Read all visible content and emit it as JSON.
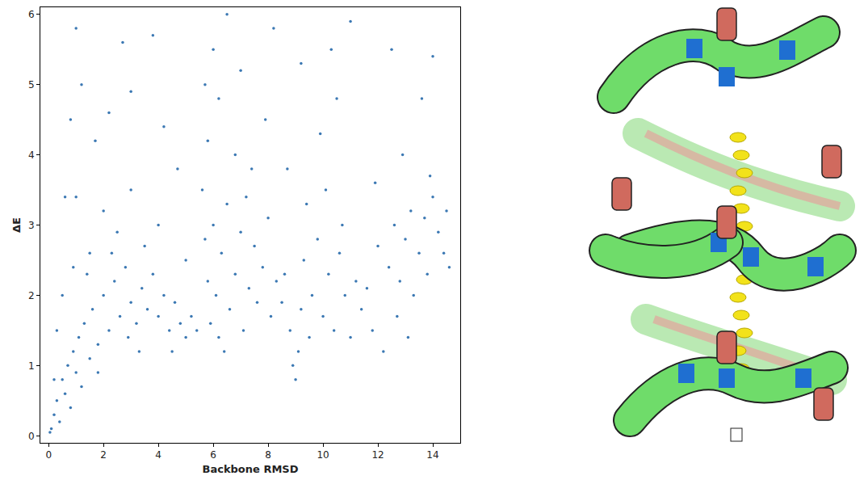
{
  "chart_data": {
    "type": "scatter",
    "x_label": "Backbone RMSD",
    "y_label": "ΔE",
    "color": "#3b78b3",
    "marker": "circle",
    "grid": false,
    "xlim": [
      -0.3,
      15.0
    ],
    "xticks": [
      0,
      2,
      4,
      6,
      8,
      10,
      12,
      14
    ],
    "ylim": [
      -0.1,
      6.1
    ],
    "yticks": [
      0,
      1,
      2,
      3,
      4,
      5,
      6
    ],
    "x": [
      0.05,
      0.1,
      0.2,
      0.3,
      0.4,
      0.5,
      0.6,
      0.7,
      0.8,
      0.9,
      1.0,
      1.1,
      1.2,
      1.3,
      1.5,
      1.6,
      1.8,
      2.0,
      2.2,
      2.4,
      2.6,
      2.8,
      3.0,
      3.2,
      3.4,
      3.6,
      3.8,
      4.0,
      4.2,
      4.4,
      4.6,
      4.8,
      5.0,
      5.2,
      5.4,
      1.5,
      2.5,
      3.5,
      2.0,
      3.0,
      4.0,
      1.0,
      0.6,
      0.8,
      1.2,
      1.0,
      2.2,
      3.0,
      4.2,
      2.7,
      3.8,
      1.7,
      4.7,
      5.0,
      0.3,
      0.5,
      0.2,
      1.4,
      2.3,
      3.3,
      4.5,
      0.9,
      1.8,
      2.9,
      5.6,
      5.7,
      5.8,
      5.9,
      6.0,
      6.1,
      6.2,
      6.3,
      6.5,
      6.6,
      6.8,
      7.0,
      7.1,
      7.3,
      7.5,
      7.6,
      7.8,
      8.0,
      8.1,
      8.3,
      5.8,
      6.2,
      6.8,
      7.4,
      7.9,
      6.0,
      7.0,
      8.2,
      6.5,
      5.7,
      7.2,
      6.4,
      8.6,
      8.8,
      8.9,
      9.0,
      9.1,
      9.2,
      9.3,
      9.5,
      9.6,
      9.8,
      10.0,
      10.2,
      10.4,
      10.6,
      10.8,
      11.0,
      11.2,
      9.4,
      10.1,
      10.7,
      8.7,
      9.9,
      10.5,
      9.2,
      11.0,
      10.3,
      8.5,
      11.4,
      11.6,
      11.8,
      12.0,
      12.2,
      12.4,
      12.6,
      12.7,
      12.8,
      13.0,
      13.1,
      13.2,
      13.3,
      13.5,
      13.7,
      13.8,
      14.0,
      14.2,
      14.4,
      14.6,
      14.5,
      13.6,
      12.5,
      14.0,
      12.9,
      11.9,
      13.9
    ],
    "y": [
      0.05,
      0.1,
      0.3,
      0.5,
      0.2,
      0.8,
      0.6,
      1.0,
      0.4,
      1.2,
      0.9,
      1.4,
      0.7,
      1.6,
      1.1,
      1.8,
      1.3,
      2.0,
      1.5,
      2.2,
      1.7,
      2.4,
      1.9,
      1.6,
      2.1,
      1.8,
      2.3,
      1.7,
      2.0,
      1.5,
      1.9,
      1.6,
      1.4,
      1.7,
      1.5,
      2.6,
      2.9,
      2.7,
      3.2,
      3.5,
      3.0,
      3.4,
      3.4,
      4.5,
      5.0,
      5.8,
      4.6,
      4.9,
      4.4,
      5.6,
      5.7,
      4.2,
      3.8,
      2.5,
      1.5,
      2.0,
      0.8,
      2.3,
      2.6,
      1.2,
      1.2,
      2.4,
      0.9,
      1.4,
      3.5,
      2.8,
      2.2,
      1.6,
      3.0,
      2.0,
      1.4,
      2.6,
      3.3,
      1.8,
      2.3,
      2.9,
      1.5,
      2.1,
      2.7,
      1.9,
      2.4,
      3.1,
      1.7,
      2.2,
      4.2,
      4.8,
      4.0,
      3.8,
      4.5,
      5.5,
      5.2,
      5.8,
      6.0,
      5.0,
      3.4,
      1.2,
      2.3,
      1.5,
      1.0,
      0.8,
      1.2,
      1.8,
      2.5,
      1.4,
      2.0,
      2.8,
      1.7,
      2.3,
      1.5,
      2.6,
      2.0,
      1.4,
      2.2,
      3.3,
      3.5,
      3.0,
      3.8,
      4.3,
      4.8,
      5.3,
      5.9,
      5.5,
      1.9,
      1.8,
      2.1,
      1.5,
      2.7,
      1.2,
      2.4,
      3.0,
      1.7,
      2.2,
      2.8,
      1.4,
      3.2,
      2.0,
      2.6,
      3.1,
      2.3,
      3.4,
      2.9,
      2.6,
      2.4,
      3.2,
      4.8,
      5.5,
      5.4,
      4.0,
      3.6,
      3.7
    ]
  }
}
